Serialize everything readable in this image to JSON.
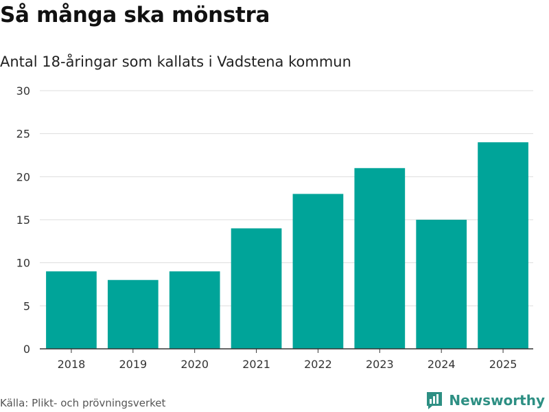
{
  "header": {
    "title": "Så många ska mönstra",
    "subtitle": "Antal 18-åringar som kallats i Vadstena kommun"
  },
  "footer": {
    "source": "Källa: Plikt- och prövningsverket",
    "brand": "Newsworthy"
  },
  "colors": {
    "bar": "#00a499",
    "grid": "#dddddd",
    "axis": "#333333",
    "brand": "#2d8f83"
  },
  "icons": {
    "brand_logo": "bar-chart-speech-bubble-icon"
  },
  "chart_data": {
    "type": "bar",
    "title": "Så många ska mönstra",
    "subtitle": "Antal 18-åringar som kallats i Vadstena kommun",
    "xlabel": "",
    "ylabel": "",
    "categories": [
      "2018",
      "2019",
      "2020",
      "2021",
      "2022",
      "2023",
      "2024",
      "2025"
    ],
    "values": [
      9,
      8,
      9,
      14,
      18,
      21,
      15,
      24
    ],
    "ylim": [
      0,
      30
    ],
    "yticks": [
      0,
      5,
      10,
      15,
      20,
      25,
      30
    ],
    "grid": true,
    "legend": "none"
  }
}
